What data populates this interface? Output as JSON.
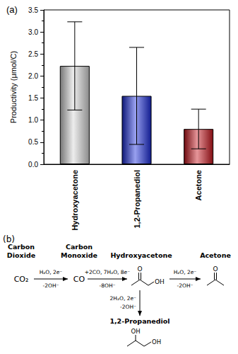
{
  "chart_data": {
    "type": "bar",
    "title": "(a)",
    "ylabel": "Productivity (μmol/C)",
    "categories": [
      "Hydroxyacetone",
      "1,2-Propanediol",
      "Acetone"
    ],
    "values": [
      2.23,
      1.55,
      0.8
    ],
    "errors": [
      1.0,
      1.1,
      0.45
    ],
    "colors": [
      "#d8d8d8",
      "#1a2bdc",
      "#c8141c"
    ],
    "ylim": [
      0,
      3.5
    ],
    "yticks": [
      {
        "value": 0,
        "label": "0.0"
      },
      0.5,
      {
        "value": 1,
        "label": "1.0"
      },
      1.5,
      {
        "value": 2,
        "label": "2.0"
      },
      2.5,
      {
        "value": 3,
        "label": "3.0"
      },
      3.5
    ],
    "grid": false
  },
  "scheme": {
    "label": "(b)",
    "species": [
      {
        "name": [
          "Carbon",
          "Dioxide"
        ],
        "formula": "CO₂"
      },
      {
        "name": [
          "Carbon",
          "Monoxide"
        ],
        "formula": "CO"
      },
      {
        "name": [
          "Hydroxyacetone"
        ],
        "structure_labels": [
          "O",
          "OH"
        ]
      },
      {
        "name": [
          "Acetone"
        ],
        "structure_labels": [
          "O"
        ]
      },
      {
        "name": [
          "1,2-Propanediol"
        ],
        "structure_labels": [
          "OH",
          "OH"
        ]
      }
    ],
    "steps": [
      {
        "from": 0,
        "to": 1,
        "above": "H₂O, 2e⁻",
        "below": "-2OH⁻"
      },
      {
        "from": 1,
        "to": 2,
        "above": "+2CO, 7H₂O, 8e⁻",
        "below": "-8OH⁻"
      },
      {
        "from": 2,
        "to": 3,
        "above": "H₂O, 2e⁻",
        "below": "-2OH⁻"
      },
      {
        "from": 2,
        "to": 4,
        "above": "2H₂O, 2e⁻",
        "below": "-2OH⁻"
      }
    ]
  }
}
